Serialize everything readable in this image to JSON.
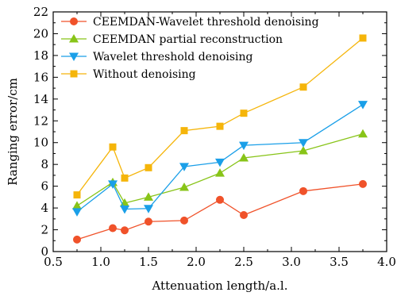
{
  "chart_data": {
    "type": "line",
    "xlabel": "Attenuation length/a.l.",
    "ylabel": "Ranging error/cm",
    "xlim": [
      0.5,
      4.0
    ],
    "ylim": [
      0,
      22
    ],
    "xticks": [
      "0.5",
      "1.0",
      "1.5",
      "2.0",
      "2.5",
      "3.0",
      "3.5",
      "4.0"
    ],
    "yticks": [
      "0",
      "2",
      "4",
      "6",
      "8",
      "10",
      "12",
      "14",
      "16",
      "18",
      "20",
      "22"
    ],
    "grid": false,
    "legend_position": "top-left",
    "x": [
      0.75,
      1.125,
      1.25,
      1.5,
      1.875,
      2.25,
      2.5,
      3.125,
      3.75
    ],
    "series": [
      {
        "name": "CEEMDAN-Wavelet threshold denoising",
        "color": "#f0522a",
        "marker": "circle",
        "values": [
          1.1,
          2.15,
          1.95,
          2.75,
          2.85,
          4.75,
          3.35,
          5.55,
          6.2
        ]
      },
      {
        "name": "CEEMDAN partial reconstruction",
        "color": "#88c418",
        "marker": "triangle-up",
        "values": [
          4.2,
          6.35,
          4.45,
          5.0,
          5.9,
          7.2,
          8.6,
          9.25,
          10.8
        ]
      },
      {
        "name": "Wavelet threshold denoising",
        "color": "#1a9fe8",
        "marker": "triangle-down",
        "values": [
          3.65,
          6.2,
          3.9,
          3.95,
          7.8,
          8.2,
          9.75,
          10.0,
          13.5
        ]
      },
      {
        "name": "Without denoising",
        "color": "#f5b50a",
        "marker": "square",
        "values": [
          5.2,
          9.6,
          6.75,
          7.7,
          11.1,
          11.5,
          12.7,
          15.1,
          19.6
        ]
      }
    ]
  }
}
